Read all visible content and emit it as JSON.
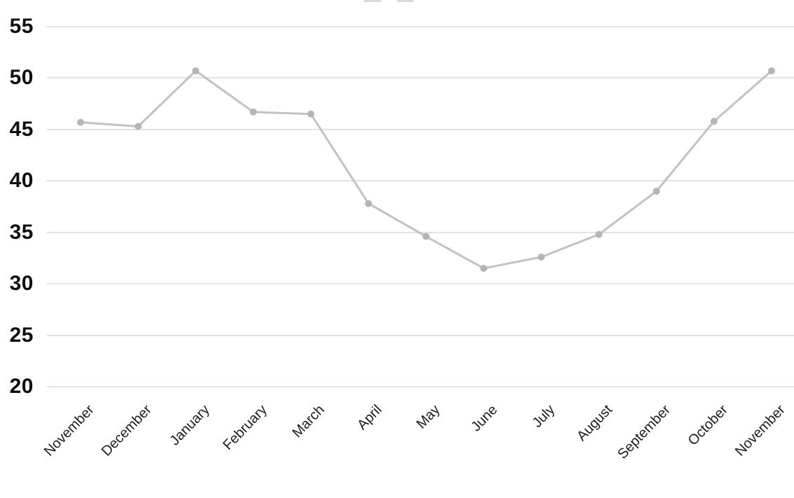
{
  "chart_data": {
    "type": "line",
    "categories": [
      "November",
      "December",
      "January",
      "February",
      "March",
      "April",
      "May",
      "June",
      "July",
      "August",
      "September",
      "October",
      "November"
    ],
    "values": [
      45.7,
      45.3,
      50.7,
      46.7,
      46.5,
      37.8,
      34.6,
      31.5,
      32.6,
      34.8,
      39.0,
      45.8,
      50.7
    ],
    "title": "",
    "xlabel": "",
    "ylabel": "",
    "ylim": [
      20,
      55
    ],
    "yticks": [
      55,
      50,
      45,
      40,
      35,
      30,
      25,
      20
    ],
    "grid": true,
    "legend": false,
    "marker_style": "circle",
    "colors": {
      "line": "#c2c2c2",
      "marker": "#b5b5b5",
      "gridline": "#e3e3e3",
      "y_tick_label": "#0f0f0f",
      "x_tick_label": "#1c1c1c"
    }
  }
}
